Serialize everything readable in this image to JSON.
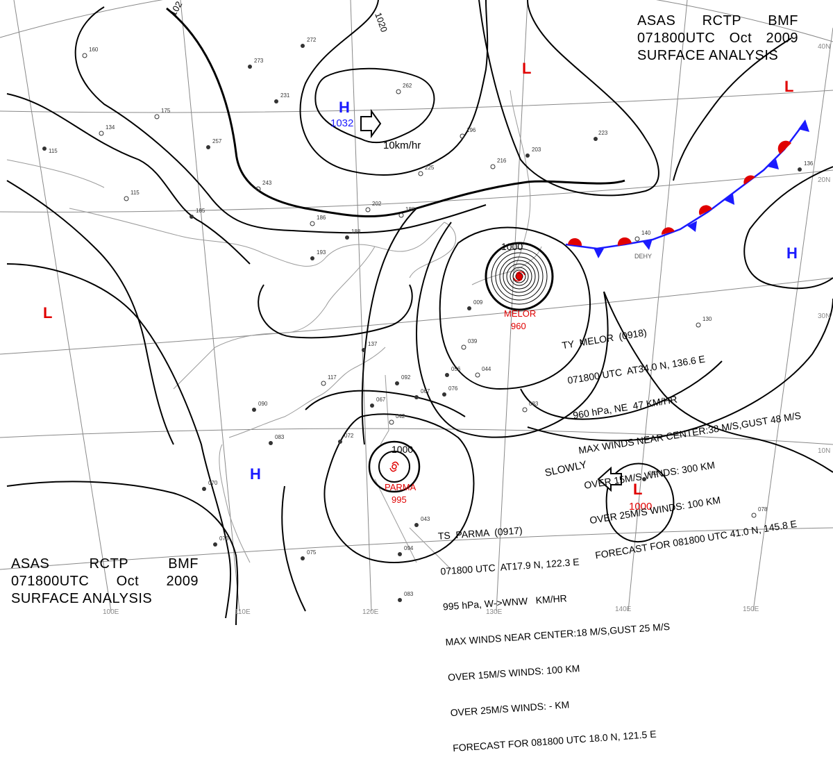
{
  "header": {
    "line1": [
      "ASAS",
      "RCTP",
      "BMF"
    ],
    "line2": [
      "071800UTC",
      "Oct",
      "2009"
    ],
    "line3": "SURFACE ANALYSIS"
  },
  "pressure_centers": [
    {
      "type": "H",
      "value": "1032",
      "color": "#1a1aff"
    },
    {
      "type": "H",
      "value": "",
      "color": "#1a1aff"
    },
    {
      "type": "H",
      "value": "",
      "color": "#1a1aff"
    },
    {
      "type": "L",
      "value": "",
      "color": "#e00000"
    },
    {
      "type": "L",
      "value": "",
      "color": "#e00000"
    },
    {
      "type": "L",
      "value": "",
      "color": "#e00000"
    },
    {
      "type": "L",
      "value": "1000",
      "color": "#e00000"
    }
  ],
  "isobar_labels": [
    "1000",
    "1000",
    "1020",
    "102"
  ],
  "movement_labels": [
    "10km/hr",
    "SLOWLY"
  ],
  "storm_labels": {
    "melor": {
      "name": "MELOR",
      "pressure": "960"
    },
    "parma": {
      "name": "PARMA",
      "pressure": "995"
    }
  },
  "front_label": "DEHY",
  "melor_info": {
    "title": "TY  MELOR  (0918)",
    "line1": "071800 UTC  AT34.0 N, 136.6 E",
    "line2": "960 hPa, NE  47 KM/HR",
    "line3": "MAX WINDS NEAR CENTER:38 M/S,GUST 48 M/S",
    "line4": "OVER 15M/S WINDS: 300 KM",
    "line5": "OVER 25M/S WINDS: 100 KM",
    "line6": "FORECAST FOR 081800 UTC 41.0 N, 145.8 E"
  },
  "parma_info": {
    "title": "TS  PARMA  (0917)",
    "line1": "071800 UTC  AT17.9 N, 122.3 E",
    "line2": "995 hPa, W->WNW   KM/HR",
    "line3": "MAX WINDS NEAR CENTER:18 M/S,GUST 25 M/S",
    "line4": "OVER 15M/S WINDS: 100 KM",
    "line5": "OVER 25M/S WINDS: - KM",
    "line6": "FORECAST FOR 081800 UTC 18.0 N, 121.5 E"
  },
  "lon_labels": [
    "100E",
    "110E",
    "120E",
    "130E",
    "140E",
    "150E"
  ],
  "lat_labels": [
    "40N",
    "30N",
    "20N",
    "10N"
  ],
  "station_labels": [
    "160",
    "134",
    "115",
    "175",
    "257",
    "273",
    "231",
    "272",
    "262",
    "196",
    "216",
    "203",
    "223",
    "225",
    "186",
    "188",
    "202",
    "193",
    "188",
    "117",
    "137",
    "090",
    "083",
    "072",
    "067",
    "042",
    "092",
    "067",
    "039",
    "044",
    "056",
    "076",
    "075",
    "094",
    "043",
    "083",
    "078",
    "083",
    "140",
    "130",
    "136",
    "243",
    "115",
    "185",
    "009",
    "083",
    "070",
    "076"
  ],
  "colors": {
    "high": "#1a1aff",
    "low": "#e00000",
    "warm_front": "#e00000",
    "cold_front": "#1a1aff",
    "isobar": "#000000",
    "grid": "#888888",
    "coast": "#9a9a9a"
  }
}
